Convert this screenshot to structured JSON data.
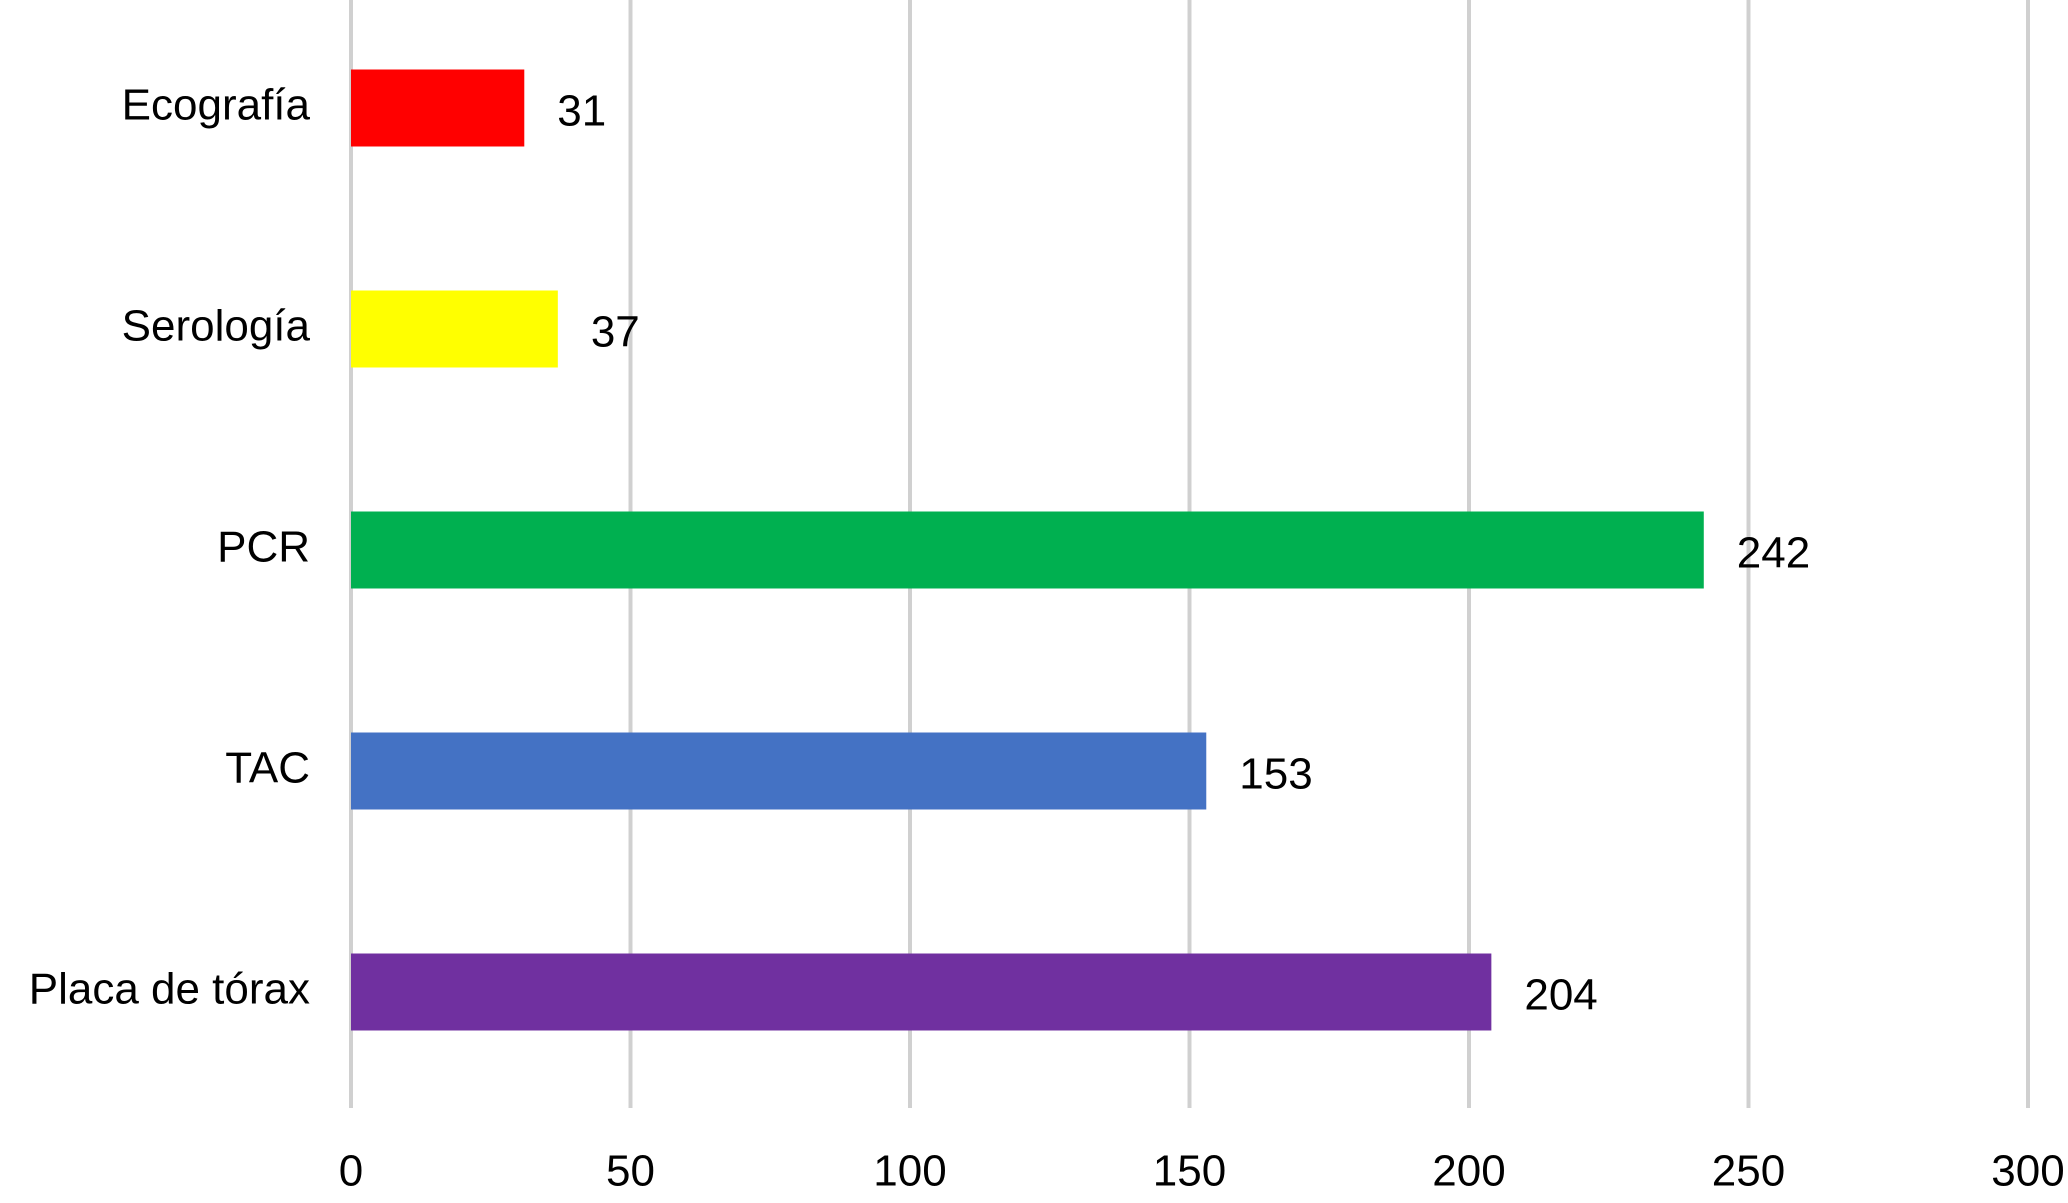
{
  "chart_data": {
    "type": "bar",
    "orientation": "horizontal",
    "categories": [
      "Ecografía",
      "Serología",
      "PCR",
      "TAC",
      "Placa de tórax"
    ],
    "values": [
      31,
      37,
      242,
      153,
      204
    ],
    "colors": [
      "#ff0000",
      "#ffff00",
      "#00b050",
      "#4472c4",
      "#7030a0"
    ],
    "xlim": [
      0,
      300
    ],
    "xticks": [
      0,
      50,
      100,
      150,
      200,
      250,
      300
    ],
    "grid": true
  }
}
